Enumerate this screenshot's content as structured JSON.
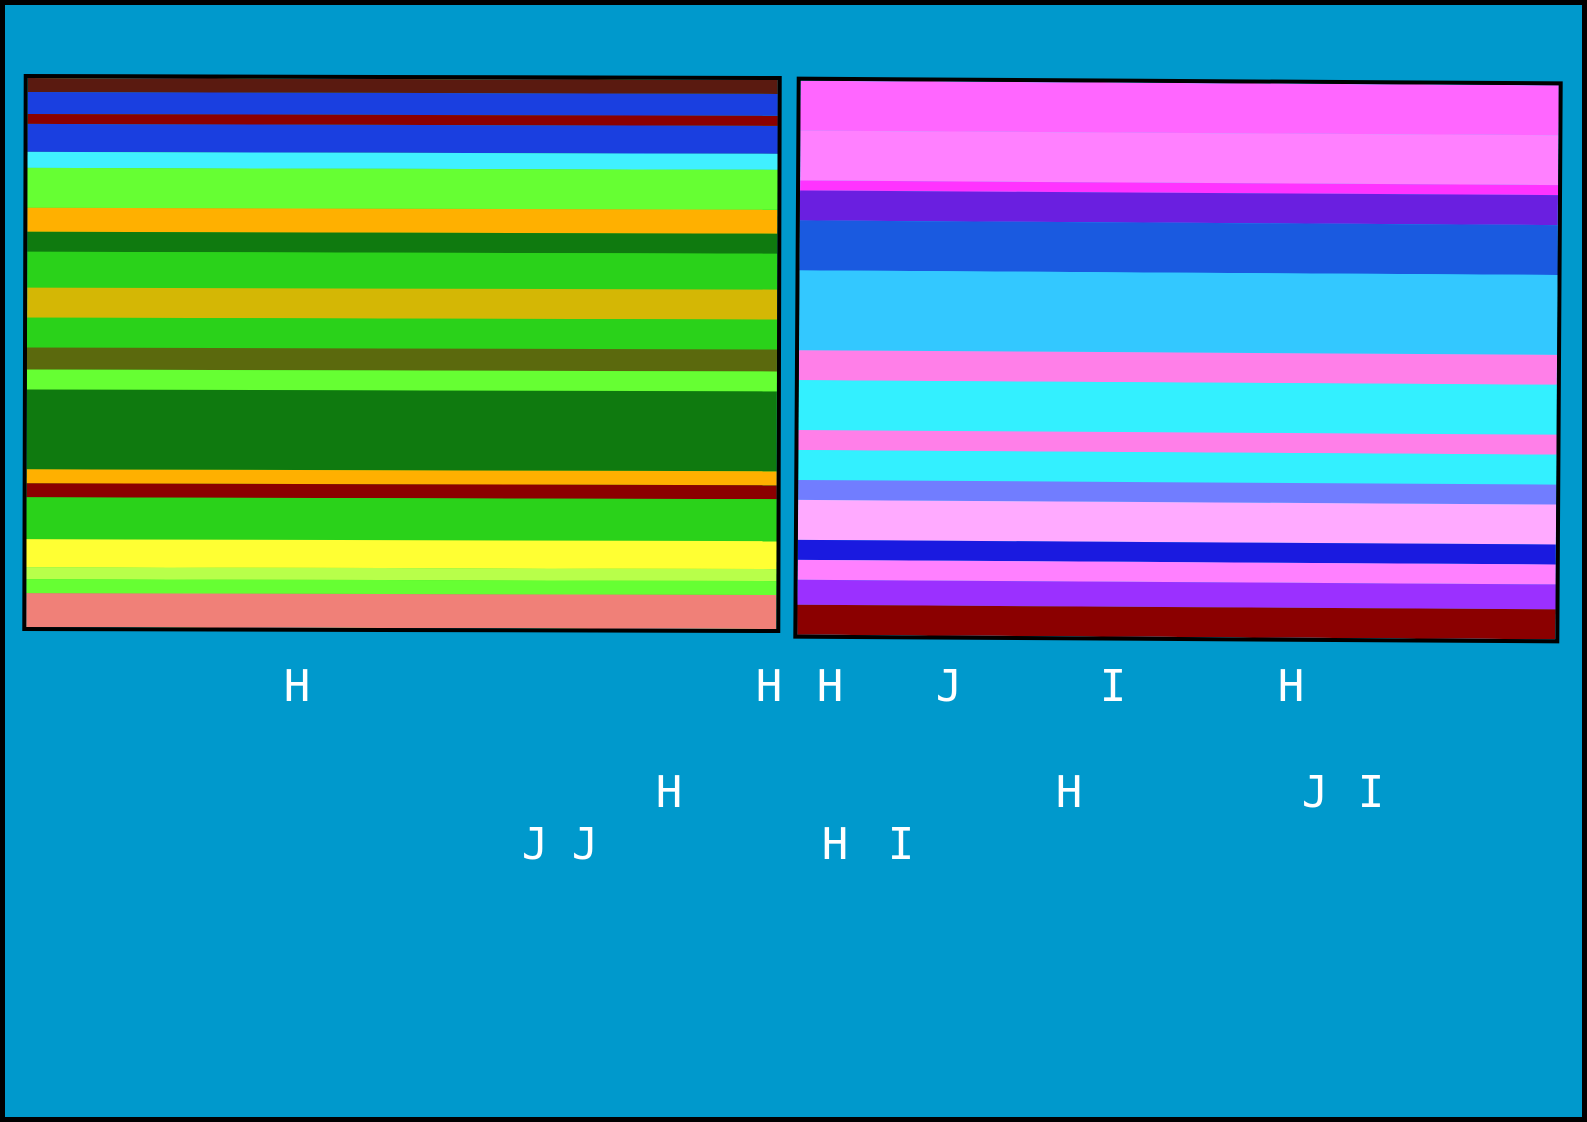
{
  "panels": [
    {
      "id": "left",
      "palette": {
        "dark_red": "#8b0000",
        "blue": "#1a3fe0",
        "cyan": "#40f0ff",
        "green": "#2ad21a",
        "lime": "#66ff33",
        "dark_green": "#0f7a0f",
        "orange": "#ffb000",
        "yellow": "#ffff33",
        "salmon": "#f08078"
      }
    },
    {
      "id": "right",
      "palette": {
        "magenta": "#ff66ff",
        "violet": "#6a1fe0",
        "blue": "#1a5ae0",
        "cyan": "#33f0ff",
        "pink": "#ff7fe8",
        "purple": "#9b30ff",
        "dark_red": "#8b0000"
      }
    }
  ],
  "glyphs": [
    "H",
    "H",
    "H",
    "J",
    "I",
    "H",
    "H",
    "H",
    "J",
    "I",
    "J",
    "J",
    "H",
    "I"
  ]
}
